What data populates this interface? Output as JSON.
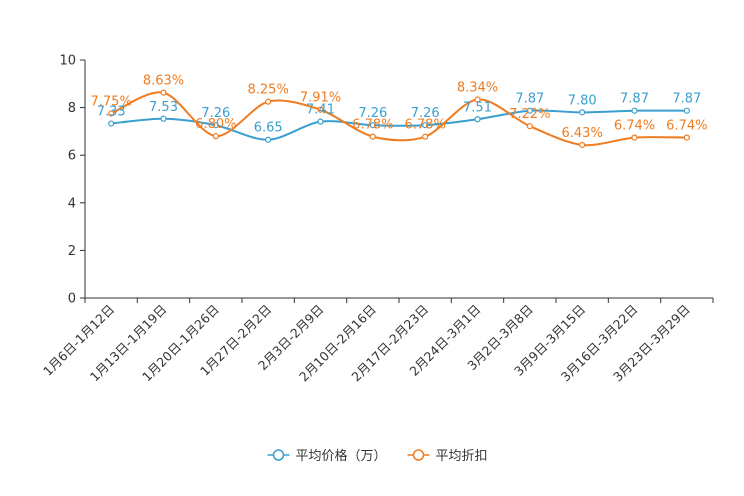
{
  "chart_data": {
    "type": "line",
    "title": "",
    "xlabel": "",
    "ylabel": "",
    "ylim": [
      0,
      10
    ],
    "yticks": [
      "0",
      "2",
      "4",
      "6",
      "8",
      "10"
    ],
    "categories": [
      "1月6日-1月12日",
      "1月13日-1月19日",
      "1月20日-1月26日",
      "1月27日-2月2日",
      "2月3日-2月9日",
      "2月10日-2月16日",
      "2月17日-2月23日",
      "2月24日-3月1日",
      "3月2日-3月8日",
      "3月9日-3月15日",
      "3月16日-3月22日",
      "3月23日-3月29日"
    ],
    "series": [
      {
        "name": "平均价格（万）",
        "color": "#3a9fd0",
        "values": [
          7.33,
          7.53,
          7.26,
          6.65,
          7.41,
          7.26,
          7.26,
          7.51,
          7.87,
          7.8,
          7.87,
          7.87
        ],
        "labels": [
          "7.33",
          "7.53",
          "7.26",
          "6.65",
          "7.41",
          "7.26",
          "7.26",
          "7.51",
          "7.87",
          "7.80",
          "7.87",
          "7.87"
        ]
      },
      {
        "name": "平均折扣",
        "color": "#f07c1f",
        "values": [
          7.75,
          8.63,
          6.8,
          8.25,
          7.91,
          6.78,
          6.78,
          8.34,
          7.22,
          6.43,
          6.74,
          6.74
        ],
        "labels": [
          "7.75%",
          "8.63%",
          "6.80%",
          "8.25%",
          "7.91%",
          "6.78%",
          "6.78%",
          "8.34%",
          "7.22%",
          "6.43%",
          "6.74%",
          "6.74%"
        ]
      }
    ],
    "legend_position": "bottom-center",
    "grid": false
  }
}
